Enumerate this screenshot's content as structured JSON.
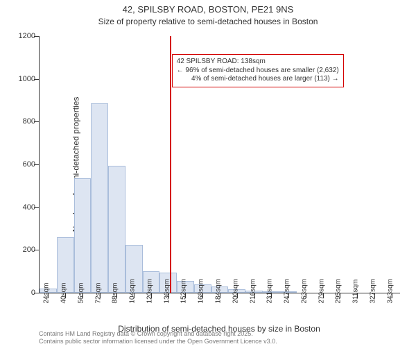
{
  "header": {
    "title": "42, SPILSBY ROAD, BOSTON, PE21 9NS",
    "subtitle": "Size of property relative to semi-detached houses in Boston"
  },
  "chart": {
    "type": "histogram",
    "ylabel": "Number of semi-detached properties",
    "xlabel": "Distribution of semi-detached houses by size in Boston",
    "ylim": [
      0,
      1200
    ],
    "ytick_step": 200,
    "xticks": [
      "24sqm",
      "40sqm",
      "56sqm",
      "72sqm",
      "88sqm",
      "104sqm",
      "120sqm",
      "136sqm",
      "152sqm",
      "168sqm",
      "184sqm",
      "200sqm",
      "216sqm",
      "231sqm",
      "247sqm",
      "263sqm",
      "279sqm",
      "295sqm",
      "311sqm",
      "327sqm",
      "343sqm"
    ],
    "values": [
      20,
      260,
      535,
      885,
      595,
      225,
      100,
      95,
      55,
      40,
      30,
      15,
      10,
      5,
      5,
      0,
      0,
      0,
      0,
      0,
      0
    ],
    "bar_fill": "#dde5f2",
    "bar_stroke": "#a9bddb",
    "bar_width_ratio": 1.0,
    "background_color": "#ffffff",
    "axis_color": "#333333",
    "label_fontsize": 12,
    "tick_fontsize": 10,
    "marker": {
      "index": 7.1,
      "color": "#d40000"
    },
    "callout": {
      "border_color": "#d40000",
      "lines": [
        "42 SPILSBY ROAD: 138sqm",
        "← 96% of semi-detached houses are smaller (2,632)",
        "4% of semi-detached houses are larger (113) →"
      ],
      "x_tick_index": 7.2,
      "y_value": 1115
    }
  },
  "footer": {
    "line1": "Contains HM Land Registry data © Crown copyright and database right 2025.",
    "line2": "Contains public sector information licensed under the Open Government Licence v3.0."
  }
}
